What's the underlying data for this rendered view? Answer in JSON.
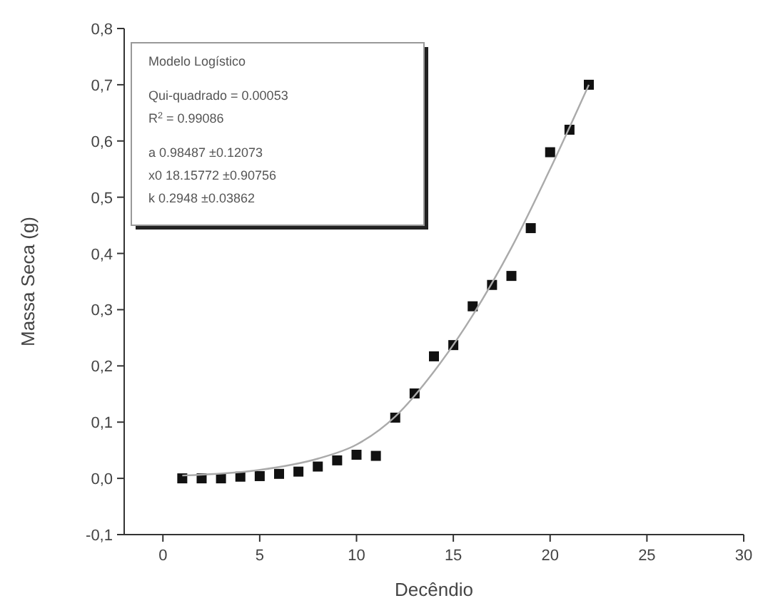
{
  "chart_data": {
    "type": "scatter",
    "xlabel": "Decêndio",
    "ylabel": "Massa Seca (g)",
    "marker": "square",
    "grid": false,
    "xlim": [
      -2,
      30
    ],
    "xticks": [
      0,
      5,
      10,
      15,
      20,
      25,
      30
    ],
    "ylim": [
      -0.1,
      0.8
    ],
    "yticks": [
      {
        "value": -0.1,
        "label": "-0,1"
      },
      {
        "value": 0,
        "label": "0,0"
      },
      {
        "value": 0.1,
        "label": "0,1"
      },
      {
        "value": 0.2,
        "label": "0,2"
      },
      {
        "value": 0.3,
        "label": "0,3"
      },
      {
        "value": 0.4,
        "label": "0,4"
      },
      {
        "value": 0.5,
        "label": "0,5"
      },
      {
        "value": 0.6,
        "label": "0,6"
      },
      {
        "value": 0.7,
        "label": "0,7"
      },
      {
        "value": 0.8,
        "label": "0,8"
      }
    ],
    "series": [
      {
        "color": "#111111",
        "x": [
          1,
          2,
          3,
          4,
          5,
          6,
          7,
          8,
          9,
          10,
          11,
          12,
          13,
          14,
          15,
          16,
          17,
          18,
          19,
          20,
          21,
          22
        ],
        "values": [
          0.0,
          0.0,
          0.0,
          0.003,
          0.004,
          0.008,
          0.012,
          0.021,
          0.032,
          0.042,
          0.04,
          0.108,
          0.151,
          0.217,
          0.237,
          0.306,
          0.344,
          0.36,
          0.445,
          0.58,
          0.62,
          0.7
        ]
      },
      {
        "type": "line",
        "color": "#aaaaaa",
        "line_style": "solid",
        "marker": "none",
        "x": [
          1,
          5,
          8,
          10,
          12,
          14,
          16,
          18,
          20,
          22
        ],
        "values": [
          0.005,
          0.015,
          0.035,
          0.06,
          0.11,
          0.19,
          0.29,
          0.41,
          0.55,
          0.7
        ]
      }
    ],
    "annotations": [
      "Modelo Logístico",
      "Qui-quadrado = 0.00053",
      "R$^{2}$ = 0.99086",
      "a 0.98487 ±0.12073",
      "x0 18.15772 ±0.90756",
      "k 0.2948 ±0.03862"
    ]
  }
}
